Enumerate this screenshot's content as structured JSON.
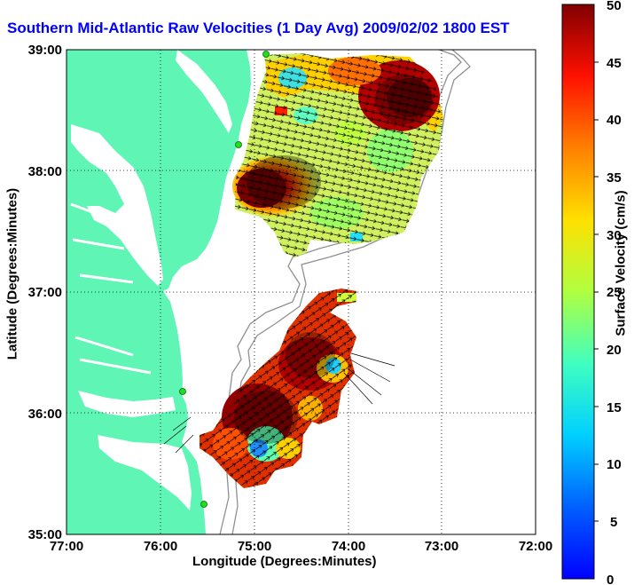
{
  "title": "Southern Mid-Atlantic Raw Velocities (1 Day Avg) 2009/02/02 1800 EST",
  "x_axis": {
    "label": "Longitude (Degrees:Minutes)",
    "ticks": [
      "77:00",
      "76:00",
      "75:00",
      "74:00",
      "73:00",
      "72:00"
    ]
  },
  "y_axis": {
    "label": "Latitude (Degrees:Minutes)",
    "ticks": [
      "39:00",
      "38:00",
      "37:00",
      "36:00",
      "35:00"
    ]
  },
  "colorbar": {
    "label": "Surface Velocity (cm/s)",
    "ticks": [
      "50",
      "45",
      "40",
      "35",
      "30",
      "25",
      "20",
      "15",
      "10",
      "5",
      "0"
    ],
    "min": 0,
    "max": 50,
    "colormap": "jet"
  },
  "colors": {
    "land": "#5ef5b5",
    "title": "#0000ff",
    "station": "#22dd22"
  },
  "map": {
    "extent": {
      "lon": [
        -77,
        -72
      ],
      "lat": [
        35,
        39
      ]
    },
    "grid": "dotted",
    "stations_visible": 4
  }
}
